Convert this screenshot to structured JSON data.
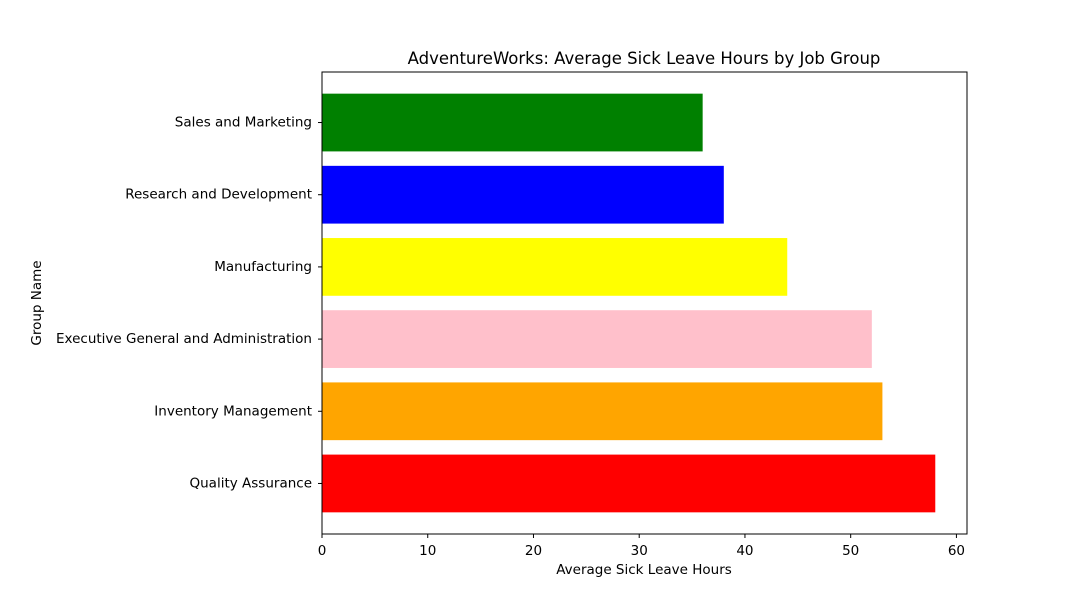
{
  "chart_data": {
    "type": "bar",
    "orientation": "horizontal",
    "title": "AdventureWorks: Average Sick Leave Hours by Job Group",
    "xlabel": "Average Sick Leave Hours",
    "ylabel": "Group Name",
    "xlim": [
      0,
      61
    ],
    "x_ticks": [
      0,
      10,
      20,
      30,
      40,
      50,
      60
    ],
    "grid": false,
    "categories": [
      "Quality Assurance",
      "Inventory Management",
      "Executive General and Administration",
      "Manufacturing",
      "Research and Development",
      "Sales and Marketing"
    ],
    "values": [
      58,
      53,
      52,
      44,
      38,
      36
    ],
    "colors": [
      "#ff0000",
      "#ffa500",
      "#ffc0cb",
      "#ffff00",
      "#0000ff",
      "#008000"
    ]
  }
}
